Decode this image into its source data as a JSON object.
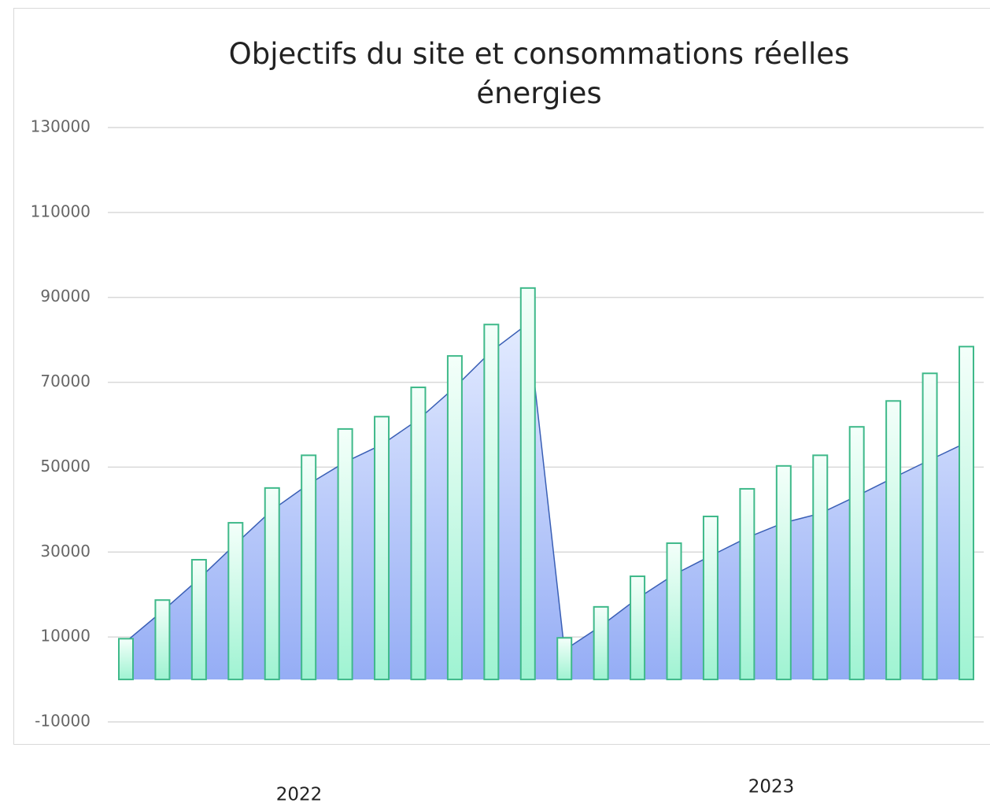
{
  "chart_data": {
    "type": "bar",
    "title": "Objectifs du site et consommations réelles énergies",
    "categories": [
      null,
      null,
      null,
      null,
      null,
      null,
      null,
      null,
      null,
      null,
      null,
      null,
      null,
      null,
      null,
      null,
      null,
      null,
      null,
      null,
      null,
      null,
      null,
      null
    ],
    "groups": [
      "2022",
      "2023"
    ],
    "series": [
      {
        "type": "area",
        "color": "#3a5fb5",
        "values": [
          8900,
          16100,
          23700,
          31900,
          39900,
          46000,
          51200,
          55300,
          61200,
          68800,
          77300,
          83800,
          6900,
          12600,
          19100,
          24700,
          29100,
          33400,
          36900,
          39100,
          43200,
          47500,
          51700,
          55800
        ]
      },
      {
        "type": "bar",
        "color": "#3fb98a",
        "values": [
          9600,
          18700,
          28200,
          36900,
          45100,
          52800,
          59000,
          61900,
          68800,
          76200,
          83600,
          92200,
          9800,
          17100,
          24300,
          32100,
          38400,
          44900,
          50300,
          52800,
          59500,
          65600,
          72100,
          78400
        ]
      }
    ],
    "ylim": [
      -10000,
      130000
    ],
    "yticks": [
      -10000,
      10000,
      30000,
      50000,
      70000,
      90000,
      110000,
      130000
    ],
    "grid": true
  }
}
